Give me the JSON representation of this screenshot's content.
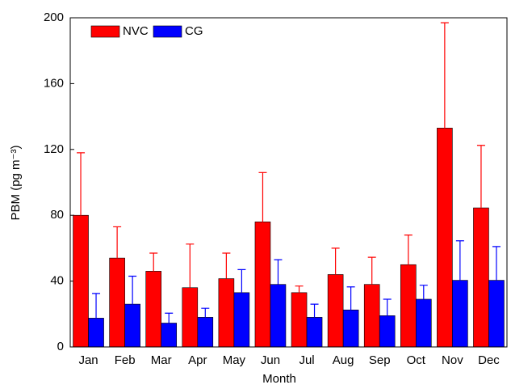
{
  "chart_data": {
    "type": "bar",
    "xlabel": "Month",
    "ylabel": "PBM (pg m⁻³)",
    "categories": [
      "Jan",
      "Feb",
      "Mar",
      "Apr",
      "May",
      "Jun",
      "Jul",
      "Aug",
      "Sep",
      "Oct",
      "Nov",
      "Dec"
    ],
    "series": [
      {
        "name": "NVC",
        "color": "#ff0000",
        "values": [
          80,
          54,
          46,
          36,
          41.5,
          76,
          33,
          44,
          38,
          50,
          133,
          84.5
        ],
        "errors": [
          38,
          19,
          11,
          26.5,
          15.5,
          30,
          4,
          16,
          16.5,
          18,
          64,
          38
        ]
      },
      {
        "name": "CG",
        "color": "#0000ff",
        "values": [
          17.5,
          26,
          14.5,
          18,
          33,
          38,
          18,
          22.5,
          19,
          29,
          40.5,
          40.5
        ],
        "errors": [
          15,
          17,
          6,
          5.5,
          14,
          15,
          8,
          14,
          10,
          8.5,
          24,
          20.5
        ]
      }
    ],
    "ylim": [
      0,
      200
    ],
    "yticks": [
      0,
      40,
      80,
      120,
      160,
      200
    ],
    "legend": "upper left"
  }
}
